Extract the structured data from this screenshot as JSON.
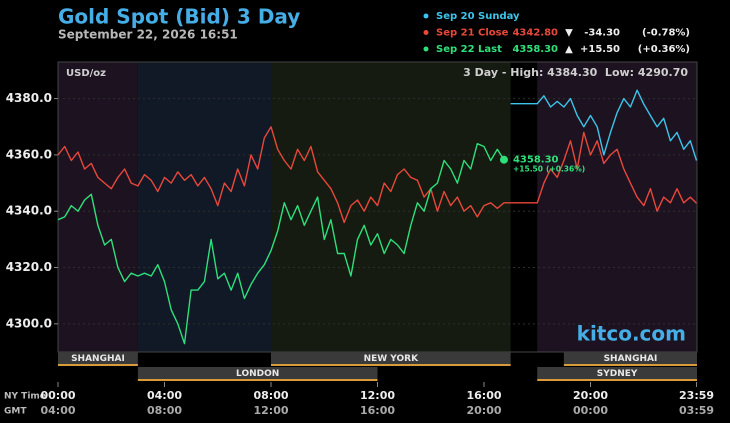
{
  "chart_data": {
    "type": "line",
    "title": "Gold Spot (Bid) 3 Day",
    "subtitle": "September 22, 2026 16:51",
    "unit_label": "USD/oz",
    "range_label": "3 Day - High: 4384.30  Low: 4290.70",
    "watermark": "kitco.com",
    "x_axis_labels": [
      "NY Time",
      "GMT"
    ],
    "xlim": [
      0,
      24
    ],
    "xticks": [
      {
        "value": 0,
        "label": "00:00"
      },
      {
        "value": 4,
        "label": "04:00"
      },
      {
        "value": 8,
        "label": "08:00"
      },
      {
        "value": 12,
        "label": "12:00"
      },
      {
        "value": 16,
        "label": "16:00"
      },
      {
        "value": 20,
        "label": "20:00"
      },
      {
        "value": 23.983,
        "label": "23:59"
      }
    ],
    "gmt_tick_labels": [
      "04:00",
      "08:00",
      "12:00",
      "16:00",
      "20:00",
      "00:00",
      "03:59"
    ],
    "ylim": [
      4290,
      4393
    ],
    "yticks": [
      {
        "value": 4300,
        "label": "4300.0"
      },
      {
        "value": 4320,
        "label": "4320.0"
      },
      {
        "value": 4340,
        "label": "4340.0"
      },
      {
        "value": 4360,
        "label": "4360.0"
      },
      {
        "value": 4380,
        "label": "4380.0"
      }
    ],
    "grid": true,
    "sessions": [
      {
        "name": "SHANGHAI",
        "start": 0,
        "end": 3,
        "row": 0,
        "bg": "#1d1320"
      },
      {
        "name": "LONDON",
        "start": 3,
        "end": 12,
        "row": 1,
        "bg": "#111826"
      },
      {
        "name": "NEW YORK",
        "start": 8,
        "end": 17,
        "row": 0,
        "bg": "#151b11"
      },
      {
        "name": "SYDNEY",
        "start": 18,
        "end": 24,
        "row": 1,
        "bg": "#1d1320"
      },
      {
        "name": "SHANGHAI",
        "start": 19,
        "end": 24,
        "row": 0,
        "bg": "#1d1320"
      }
    ],
    "series": [
      {
        "name": "Sep 21 Close",
        "color": "#e8483a",
        "last_label": "4342.80",
        "arrow": "▼",
        "change_label": "-34.30",
        "pct_label": "(-0.78%)",
        "x": [
          0,
          0.25,
          0.5,
          0.75,
          1,
          1.25,
          1.5,
          1.75,
          2,
          2.25,
          2.5,
          2.75,
          3,
          3.25,
          3.5,
          3.75,
          4,
          4.25,
          4.5,
          4.75,
          5,
          5.25,
          5.5,
          5.75,
          6,
          6.25,
          6.5,
          6.75,
          7,
          7.25,
          7.5,
          7.75,
          8,
          8.25,
          8.5,
          8.75,
          9,
          9.25,
          9.5,
          9.75,
          10,
          10.25,
          10.5,
          10.75,
          11,
          11.25,
          11.5,
          11.75,
          12,
          12.25,
          12.5,
          12.75,
          13,
          13.25,
          13.5,
          13.75,
          14,
          14.25,
          14.5,
          14.75,
          15,
          15.25,
          15.5,
          15.75,
          16,
          16.25,
          16.5,
          16.75,
          17,
          18,
          18.25,
          18.5,
          18.75,
          19,
          19.25,
          19.5,
          19.75,
          20,
          20.25,
          20.5,
          20.75,
          21,
          21.25,
          21.5,
          21.75,
          22,
          22.25,
          22.5,
          22.75,
          23,
          23.25,
          23.5,
          23.75,
          23.98
        ],
        "values": [
          4360,
          4363,
          4358,
          4361,
          4355,
          4357,
          4352,
          4350,
          4348,
          4352,
          4355,
          4350,
          4349,
          4353,
          4351,
          4347,
          4352,
          4350,
          4354,
          4351,
          4353,
          4349,
          4352,
          4348,
          4342,
          4350,
          4347,
          4355,
          4349,
          4360,
          4355,
          4366,
          4370,
          4362,
          4358,
          4355,
          4362,
          4358,
          4363,
          4354,
          4351,
          4348,
          4343,
          4336,
          4342,
          4344,
          4340,
          4345,
          4342,
          4350,
          4347,
          4353,
          4355,
          4352,
          4351,
          4345,
          4348,
          4340,
          4347,
          4342,
          4345,
          4340,
          4342,
          4338,
          4342,
          4343,
          4341,
          4343,
          4343,
          4343,
          4350,
          4355,
          4352,
          4358,
          4365,
          4355,
          4368,
          4360,
          4365,
          4357,
          4360,
          4362,
          4355,
          4350,
          4345,
          4342,
          4348,
          4340,
          4345,
          4343,
          4348,
          4343,
          4345,
          4342.8
        ]
      },
      {
        "name": "Sep 22 Last",
        "color": "#2ee07a",
        "last_label": "4358.30",
        "arrow": "▲",
        "change_label": "+15.50",
        "pct_label": "(+0.36%)",
        "x": [
          0,
          0.25,
          0.5,
          0.75,
          1,
          1.25,
          1.5,
          1.75,
          2,
          2.25,
          2.5,
          2.75,
          3,
          3.25,
          3.5,
          3.75,
          4,
          4.25,
          4.5,
          4.75,
          5,
          5.25,
          5.5,
          5.75,
          6,
          6.25,
          6.5,
          6.75,
          7,
          7.25,
          7.5,
          7.75,
          8,
          8.25,
          8.5,
          8.75,
          9,
          9.25,
          9.5,
          9.75,
          10,
          10.25,
          10.5,
          10.75,
          11,
          11.25,
          11.5,
          11.75,
          12,
          12.25,
          12.5,
          12.75,
          13,
          13.25,
          13.5,
          13.75,
          14,
          14.25,
          14.5,
          14.75,
          15,
          15.25,
          15.5,
          15.75,
          16,
          16.25,
          16.5,
          16.75
        ],
        "values": [
          4337,
          4338,
          4342,
          4340,
          4344,
          4346,
          4335,
          4328,
          4330,
          4320,
          4315,
          4318,
          4317,
          4318,
          4317,
          4321,
          4315,
          4305,
          4300,
          4293,
          4312,
          4312,
          4315,
          4330,
          4316,
          4318,
          4312,
          4318,
          4309,
          4314,
          4318,
          4321,
          4326,
          4333,
          4343,
          4337,
          4342,
          4335,
          4340,
          4345,
          4330,
          4337,
          4325,
          4325,
          4317,
          4330,
          4335,
          4328,
          4332,
          4325,
          4330,
          4328,
          4325,
          4335,
          4343,
          4340,
          4348,
          4350,
          4358,
          4355,
          4350,
          4358,
          4355,
          4364,
          4363,
          4358,
          4362,
          4358.3
        ]
      },
      {
        "name": "Sep 20 Sunday",
        "color": "#3cc4ea",
        "x": [
          17,
          18,
          18.25,
          18.5,
          18.75,
          19,
          19.25,
          19.5,
          19.75,
          20,
          20.25,
          20.5,
          20.75,
          21,
          21.25,
          21.5,
          21.75,
          22,
          22.25,
          22.5,
          22.75,
          23,
          23.25,
          23.5,
          23.75,
          23.98
        ],
        "values": [
          4378.2,
          4378.2,
          4381,
          4377,
          4379,
          4377,
          4380,
          4374,
          4370,
          4374,
          4370,
          4360,
          4368,
          4375,
          4380,
          4377,
          4383,
          4378,
          4374,
          4370,
          4373,
          4365,
          4368,
          4362,
          4365,
          4358
        ]
      }
    ]
  }
}
